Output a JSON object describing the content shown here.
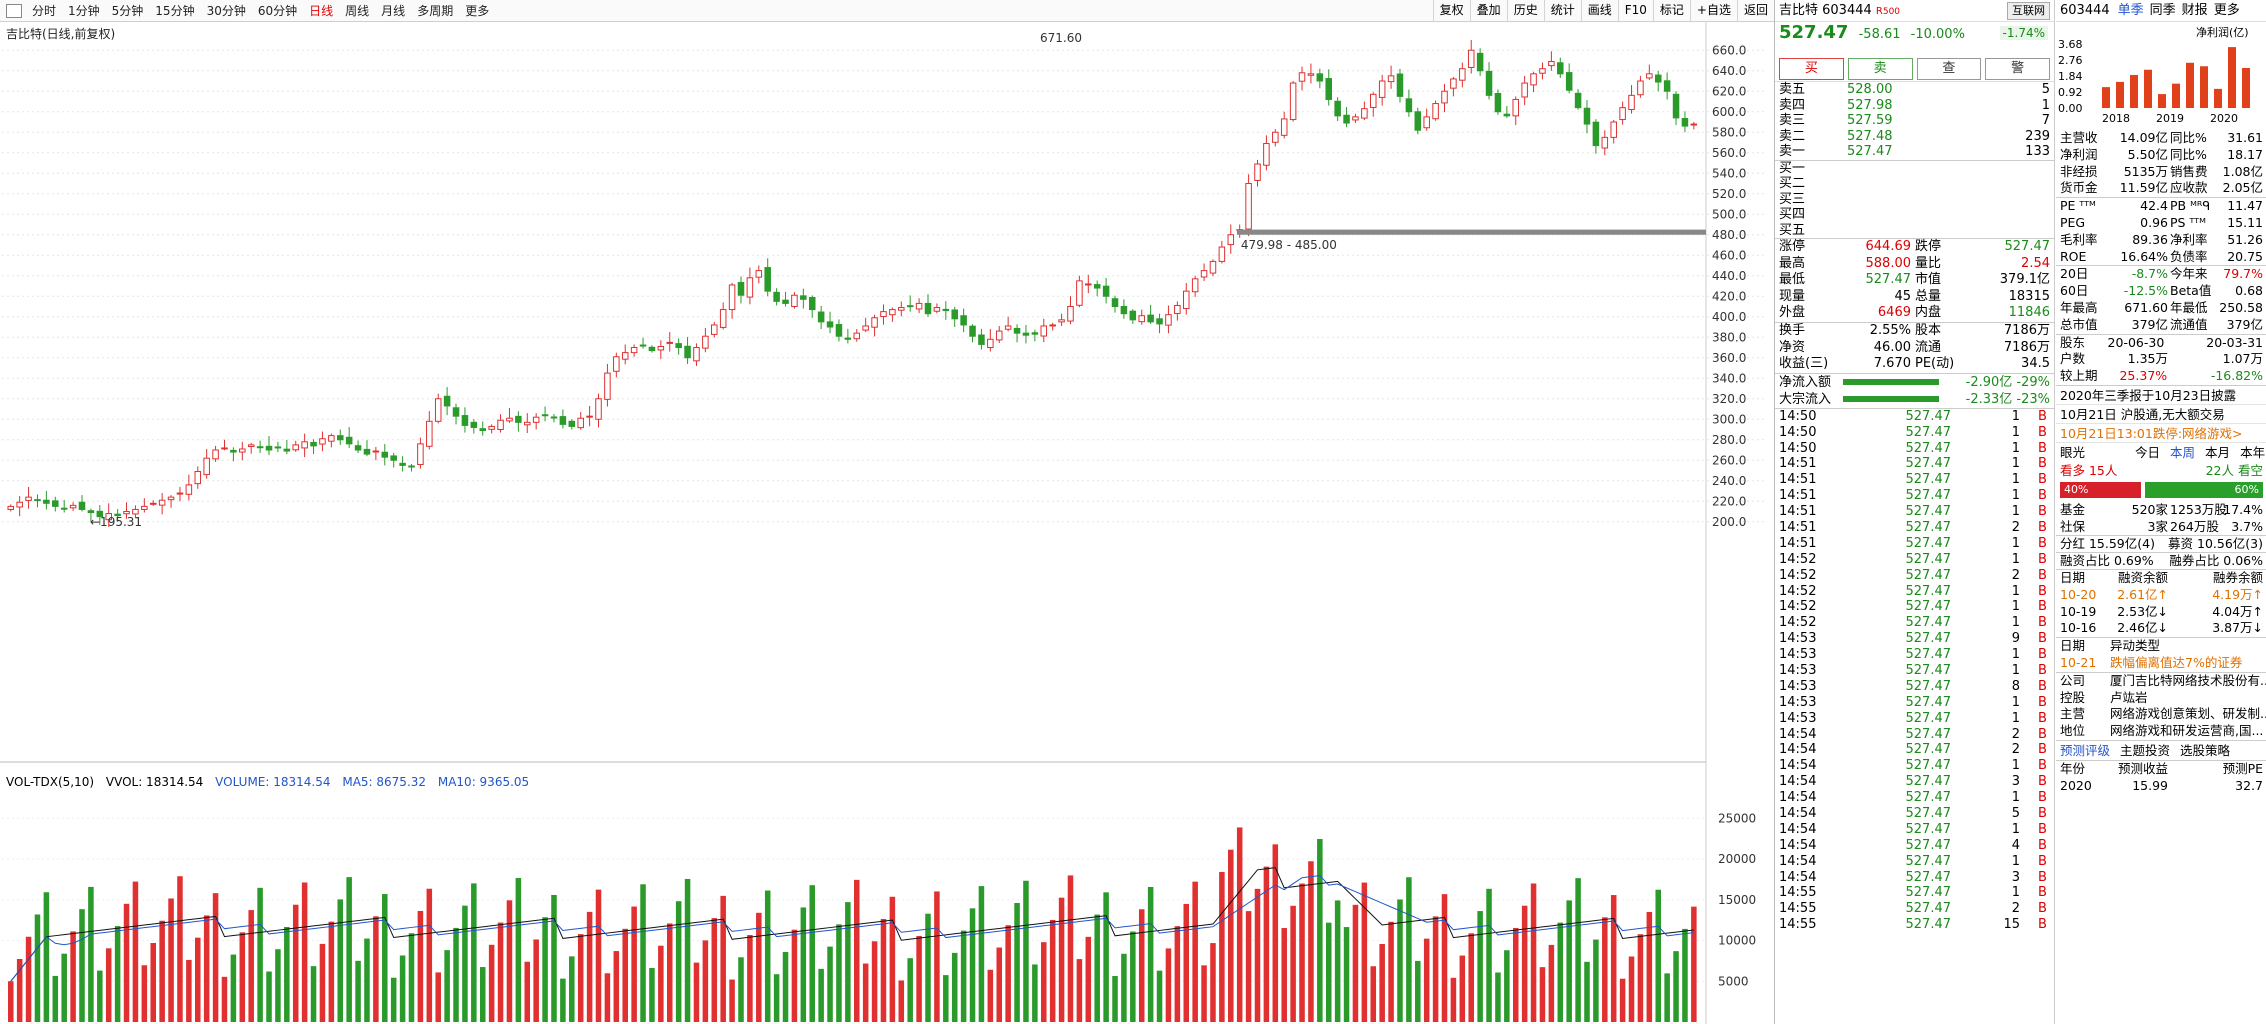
{
  "toolbar": {
    "periods": [
      "分时",
      "1分钟",
      "5分钟",
      "15分钟",
      "30分钟",
      "60分钟",
      "日线",
      "周线",
      "月线",
      "多周期",
      "更多"
    ],
    "active": "日线",
    "buttons": [
      "复权",
      "叠加",
      "历史",
      "统计",
      "画线",
      "F10",
      "标记",
      "+自选",
      "返回"
    ]
  },
  "chart": {
    "title": "吉比特(日线,前复权)",
    "price_axis": [
      660,
      640,
      620,
      600,
      580,
      560,
      540,
      520,
      500,
      480,
      460,
      440,
      420,
      400,
      380,
      360,
      340,
      320,
      300,
      280,
      260,
      240,
      220,
      200
    ],
    "high_label": "671.60",
    "low_label": "195.31",
    "gap_label": "479.98 - 485.00",
    "vol_axis": [
      25000,
      20000,
      15000,
      10000,
      5000
    ],
    "vol_legend": {
      "name": "VOL-TDX(5,10)",
      "vvol": "VVOL: 18314.54",
      "volume": "VOLUME: 18314.54",
      "ma5": "MA5: 8675.32",
      "ma10": "MA10: 9365.05"
    },
    "colors": {
      "up": "#e03030",
      "down": "#2a9a2a",
      "ma5": "#111111",
      "ma10": "#2255cc"
    }
  },
  "chart_data": {
    "type": "candlestick",
    "ylim": [
      190,
      670
    ],
    "vol_ylim": [
      0,
      27000
    ],
    "closes": [
      215,
      219,
      224,
      221,
      218,
      215,
      213,
      216,
      212,
      209,
      205,
      208,
      206,
      210,
      212,
      215,
      218,
      221,
      224,
      228,
      236,
      249,
      262,
      270,
      272,
      268,
      271,
      275,
      273,
      270,
      272,
      269,
      275,
      278,
      274,
      281,
      284,
      280,
      276,
      270,
      266,
      269,
      263,
      260,
      255,
      254,
      276,
      298,
      320,
      313,
      303,
      294,
      292,
      289,
      293,
      299,
      301,
      297,
      297,
      302,
      304,
      302,
      295,
      293,
      301,
      303,
      320,
      345,
      361,
      365,
      370,
      372,
      367,
      371,
      375,
      370,
      360,
      370,
      381,
      392,
      407,
      431,
      421,
      438,
      445,
      425,
      415,
      413,
      421,
      417,
      407,
      395,
      390,
      381,
      378,
      384,
      391,
      399,
      405,
      407,
      409,
      410,
      413,
      403,
      409,
      406,
      398,
      392,
      381,
      373,
      378,
      386,
      391,
      384,
      382,
      383,
      391,
      392,
      397,
      410,
      435,
      432,
      428,
      420,
      410,
      403,
      397,
      401,
      395,
      393,
      402,
      411,
      425,
      437,
      445,
      454,
      468,
      480,
      485,
      530,
      549,
      569,
      580,
      593,
      628,
      638,
      637,
      630,
      612,
      596,
      589,
      595,
      603,
      617,
      630,
      635,
      615,
      600,
      582,
      595,
      608,
      620,
      632,
      642,
      660,
      640,
      616,
      600,
      596,
      612,
      628,
      637,
      642,
      649,
      637,
      621,
      604,
      588,
      567,
      575,
      590,
      604,
      616,
      630,
      637,
      629,
      620,
      594,
      586,
      588
    ],
    "vol_max": 27000
  },
  "quote": {
    "header": "吉比特 603444",
    "r_tag": "R",
    "r_num": "500",
    "tag": "互联网",
    "price": "527.47",
    "change": "-58.61",
    "pct": "-10.00%",
    "pct2": "-1.74%",
    "buttons": [
      "买",
      "卖",
      "查",
      "警"
    ],
    "asks": [
      {
        "l": "卖五",
        "v": "528.00",
        "n": "5"
      },
      {
        "l": "卖四",
        "v": "527.98",
        "n": "1"
      },
      {
        "l": "卖三",
        "v": "527.59",
        "n": "7"
      },
      {
        "l": "卖二",
        "v": "527.48",
        "n": "239"
      },
      {
        "l": "卖一",
        "v": "527.47",
        "n": "133"
      }
    ],
    "bids": [
      {
        "l": "买一",
        "v": "",
        "n": ""
      },
      {
        "l": "买二",
        "v": "",
        "n": ""
      },
      {
        "l": "买三",
        "v": "",
        "n": ""
      },
      {
        "l": "买四",
        "v": "",
        "n": ""
      },
      {
        "l": "买五",
        "v": "",
        "n": ""
      }
    ],
    "stats1": [
      [
        "涨停",
        "644.69",
        "跌停",
        "527.47"
      ],
      [
        "最高",
        "588.00",
        "量比",
        "2.54"
      ],
      [
        "最低",
        "527.47",
        "市值",
        "379.1亿"
      ],
      [
        "现量",
        "45",
        "总量",
        "18315"
      ],
      [
        "外盘",
        "6469",
        "内盘",
        "11846"
      ]
    ],
    "stats2": [
      [
        "换手",
        "2.55%",
        "股本",
        "7186万"
      ],
      [
        "净资",
        "46.00",
        "流通",
        "7186万"
      ],
      [
        "收益(三)",
        "7.670",
        "PE(动)",
        "34.5"
      ]
    ],
    "flows": [
      [
        "净流入额",
        "-2.90亿 -29%"
      ],
      [
        "大宗流入",
        "-2.33亿 -23%"
      ]
    ],
    "ticks": [
      [
        "14:50",
        "527.47",
        "1",
        "B"
      ],
      [
        "14:50",
        "527.47",
        "1",
        "B"
      ],
      [
        "14:50",
        "527.47",
        "1",
        "B"
      ],
      [
        "14:51",
        "527.47",
        "1",
        "B"
      ],
      [
        "14:51",
        "527.47",
        "1",
        "B"
      ],
      [
        "14:51",
        "527.47",
        "1",
        "B"
      ],
      [
        "14:51",
        "527.47",
        "1",
        "B"
      ],
      [
        "14:51",
        "527.47",
        "2",
        "B"
      ],
      [
        "14:51",
        "527.47",
        "1",
        "B"
      ],
      [
        "14:52",
        "527.47",
        "1",
        "B"
      ],
      [
        "14:52",
        "527.47",
        "2",
        "B"
      ],
      [
        "14:52",
        "527.47",
        "1",
        "B"
      ],
      [
        "14:52",
        "527.47",
        "1",
        "B"
      ],
      [
        "14:52",
        "527.47",
        "1",
        "B"
      ],
      [
        "14:53",
        "527.47",
        "9",
        "B"
      ],
      [
        "14:53",
        "527.47",
        "1",
        "B"
      ],
      [
        "14:53",
        "527.47",
        "1",
        "B"
      ],
      [
        "14:53",
        "527.47",
        "8",
        "B"
      ],
      [
        "14:53",
        "527.47",
        "1",
        "B"
      ],
      [
        "14:53",
        "527.47",
        "1",
        "B"
      ],
      [
        "14:54",
        "527.47",
        "2",
        "B"
      ],
      [
        "14:54",
        "527.47",
        "2",
        "B"
      ],
      [
        "14:54",
        "527.47",
        "1",
        "B"
      ],
      [
        "14:54",
        "527.47",
        "3",
        "B"
      ],
      [
        "14:54",
        "527.47",
        "1",
        "B"
      ],
      [
        "14:54",
        "527.47",
        "5",
        "B"
      ],
      [
        "14:54",
        "527.47",
        "1",
        "B"
      ],
      [
        "14:54",
        "527.47",
        "4",
        "B"
      ],
      [
        "14:54",
        "527.47",
        "1",
        "B"
      ],
      [
        "14:54",
        "527.47",
        "3",
        "B"
      ],
      [
        "14:55",
        "527.47",
        "1",
        "B"
      ],
      [
        "14:55",
        "527.47",
        "2",
        "B"
      ],
      [
        "14:55",
        "527.47",
        "15",
        "B"
      ]
    ]
  },
  "info": {
    "code": "603444",
    "tabs": [
      "单季",
      "同季",
      "财报",
      "更多"
    ],
    "bar_title": "净利润(亿)",
    "bar_axis": [
      "3.68",
      "2.76",
      "1.84",
      "0.92",
      "0.00"
    ],
    "bar_years": [
      "2018",
      "2019",
      "2020"
    ],
    "bar_values": [
      1.2,
      1.5,
      1.9,
      2.2,
      0.8,
      1.4,
      2.6,
      2.4,
      1.1,
      3.5,
      2.3
    ],
    "fin": [
      [
        "主营收",
        "14.09亿",
        "同比%",
        "31.61"
      ],
      [
        "净利润",
        "5.50亿",
        "同比%",
        "18.17"
      ],
      [
        "非经损",
        "5135万",
        "销售费",
        "1.08亿"
      ],
      [
        "货币金",
        "11.59亿",
        "应收款",
        "2.05亿"
      ]
    ],
    "val": [
      [
        "PE ᵀᵀᴹ",
        "42.4",
        "PB ᴹᴿᑫ",
        "11.47"
      ],
      [
        "PEG",
        "0.96",
        "PS ᵀᵀᴹ",
        "15.11"
      ],
      [
        "毛利率",
        "89.36",
        "净利率",
        "51.26"
      ],
      [
        "ROE",
        "16.64%",
        "负债率",
        "20.75"
      ]
    ],
    "perf": [
      [
        "20日",
        "-8.7%",
        "今年来",
        "79.7%"
      ],
      [
        "60日",
        "-12.5%",
        "Beta值",
        "0.68"
      ],
      [
        "年最高",
        "671.60",
        "年最低",
        "250.58"
      ],
      [
        "总市值",
        "379亿",
        "流通值",
        "379亿"
      ]
    ],
    "holders": [
      [
        "股东",
        "20-06-30",
        "",
        "20-03-31"
      ],
      [
        "户数",
        "1.35万",
        "",
        "1.07万"
      ],
      [
        "较上期",
        "25.37%",
        "",
        "-16.82%"
      ]
    ],
    "notes": [
      "2020年三季报于10月23日披露",
      "10月21日 沪股通,无大额交易",
      "10月21日13:01跌停:网络游戏>"
    ],
    "sentiment": {
      "title": "眼光",
      "tabs": [
        "今日",
        "本周",
        "本月",
        "本年"
      ],
      "bull": "看多 15人",
      "bear": "22人 看空",
      "bull_pct": "40%",
      "bear_pct": "60%"
    },
    "fund": [
      [
        "基金",
        "520家",
        "1253万股",
        "17.4%"
      ],
      [
        "社保",
        "3家",
        "264万股",
        "3.7%"
      ]
    ],
    "div": [
      "分红 15.59亿(4)",
      "募资 10.56亿(3)"
    ],
    "margin": [
      "融资占比 0.69%",
      "融券占比 0.06%"
    ],
    "margin_head": [
      "日期",
      "融资余额",
      "融券余额"
    ],
    "margin_rows": [
      [
        "10-20",
        "2.61亿↑",
        "4.19万↑"
      ],
      [
        "10-19",
        "2.53亿↓",
        "4.04万↑"
      ],
      [
        "10-16",
        "2.46亿↓",
        "3.87万↓"
      ]
    ],
    "anomaly_head": [
      "日期",
      "异动类型"
    ],
    "anomaly": [
      "10-21",
      "跌幅偏离值达7%的证券"
    ],
    "company": [
      [
        "公司",
        "厦门吉比特网络技术股份有..."
      ],
      [
        "控股",
        "卢竑岩"
      ],
      [
        "主营",
        "网络游戏创意策划、研发制..."
      ],
      [
        "地位",
        "网络游戏和研发运营商,国..."
      ]
    ],
    "forecast_tabs": [
      "预测评级",
      "主题投资",
      "选股策略"
    ],
    "forecast_head": [
      "年份",
      "预测收益",
      "预测PE"
    ],
    "forecast": [
      "2020",
      "15.99",
      "32.7"
    ]
  }
}
